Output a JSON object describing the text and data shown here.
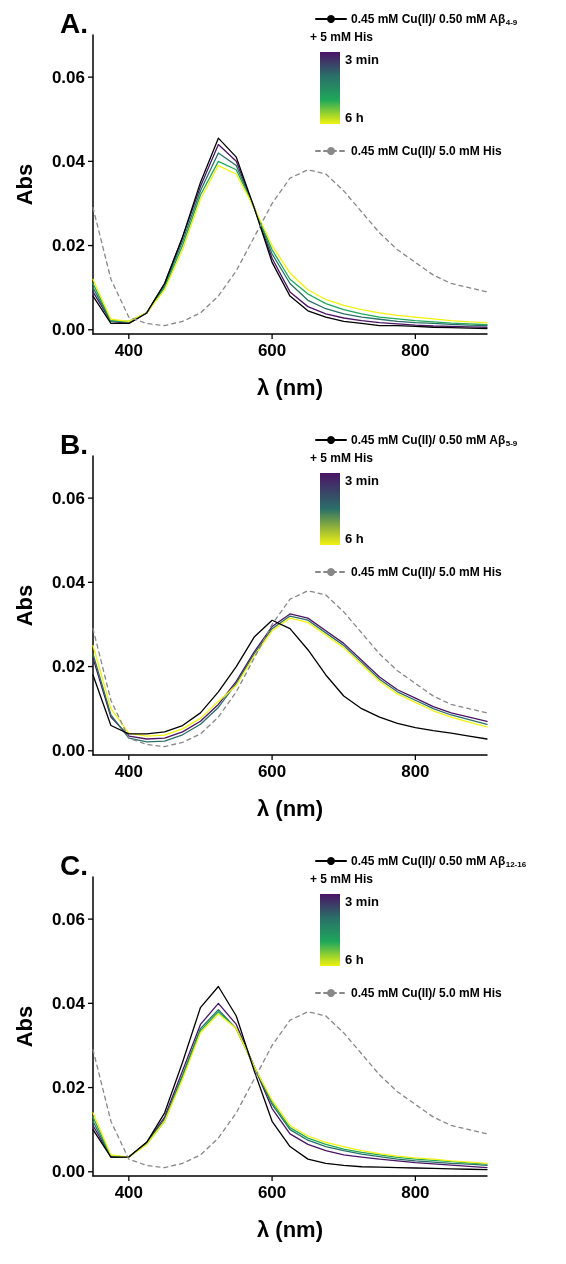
{
  "chart_data": [
    {
      "type": "line",
      "title": "A.",
      "xlabel": "λ (nm)",
      "ylabel": "Abs",
      "xlim": [
        350,
        900
      ],
      "xticks": [
        400,
        600,
        800
      ],
      "ylim": [
        -0.001,
        0.07
      ],
      "yticks": [
        {
          "value": 0,
          "label": "0.00"
        },
        {
          "value": 0.02,
          "label": "0.02"
        },
        {
          "value": 0.04,
          "label": "0.04"
        },
        {
          "value": 0.06,
          "label": "0.06"
        }
      ],
      "grid": false,
      "legend": "top right",
      "annotations": [
        "+ 5 mM His",
        "3 min",
        "6 h"
      ],
      "x": [
        350,
        375,
        400,
        425,
        450,
        475,
        500,
        525,
        550,
        575,
        600,
        625,
        650,
        675,
        700,
        725,
        750,
        775,
        800,
        825,
        850,
        875,
        900
      ],
      "series": [
        {
          "color": "#4b1466",
          "values": [
            0.009,
            0.002,
            0.0015,
            0.004,
            0.011,
            0.022,
            0.034,
            0.044,
            0.04,
            0.029,
            0.017,
            0.009,
            0.0055,
            0.0038,
            0.0028,
            0.0022,
            0.0017,
            0.0014,
            0.0011,
            0.0009,
            0.0008,
            0.0007,
            0.0006
          ]
        },
        {
          "color": "#2a6f68",
          "values": [
            0.01,
            0.002,
            0.0018,
            0.004,
            0.0105,
            0.021,
            0.033,
            0.042,
            0.039,
            0.029,
            0.018,
            0.011,
            0.007,
            0.005,
            0.0038,
            0.003,
            0.0025,
            0.002,
            0.0017,
            0.0015,
            0.0013,
            0.0011,
            0.001
          ]
        },
        {
          "color": "#1fa85a",
          "values": [
            0.011,
            0.0022,
            0.002,
            0.004,
            0.01,
            0.02,
            0.032,
            0.04,
            0.038,
            0.029,
            0.019,
            0.012,
            0.0085,
            0.0062,
            0.0048,
            0.0038,
            0.003,
            0.0026,
            0.0022,
            0.0019,
            0.0016,
            0.0014,
            0.0012
          ]
        },
        {
          "color": "#f2f20f",
          "values": [
            0.012,
            0.0025,
            0.002,
            0.004,
            0.0095,
            0.019,
            0.031,
            0.039,
            0.037,
            0.029,
            0.02,
            0.0135,
            0.0095,
            0.0072,
            0.0058,
            0.0048,
            0.004,
            0.0034,
            0.003,
            0.0026,
            0.0022,
            0.0019,
            0.0017
          ]
        },
        {
          "name": "0.45 mM Cu(II)/ 0.50 mM Aβ$_{4-9}$",
          "color": "#000000",
          "line_style": "solid",
          "values": [
            0.008,
            0.0015,
            0.0015,
            0.004,
            0.011,
            0.022,
            0.035,
            0.0455,
            0.041,
            0.029,
            0.016,
            0.008,
            0.0045,
            0.003,
            0.002,
            0.0015,
            0.001,
            0.001,
            0.0008,
            0.0006,
            0.0005,
            0.0004,
            0.0003
          ]
        },
        {
          "name": "0.45 mM Cu(II)/ 5.0 mM His",
          "color": "#888888",
          "line_style": "dashed",
          "values": [
            0.029,
            0.012,
            0.003,
            0.0015,
            0.001,
            0.002,
            0.004,
            0.008,
            0.014,
            0.022,
            0.03,
            0.036,
            0.038,
            0.037,
            0.033,
            0.028,
            0.023,
            0.019,
            0.016,
            0.013,
            0.011,
            0.01,
            0.009
          ]
        }
      ]
    },
    {
      "type": "line",
      "title": "B.",
      "xlabel": "λ (nm)",
      "ylabel": "Abs",
      "xlim": [
        350,
        900
      ],
      "xticks": [
        400,
        600,
        800
      ],
      "ylim": [
        -0.001,
        0.07
      ],
      "yticks": [
        {
          "value": 0,
          "label": "0.00"
        },
        {
          "value": 0.02,
          "label": "0.02"
        },
        {
          "value": 0.04,
          "label": "0.04"
        },
        {
          "value": 0.06,
          "label": "0.06"
        }
      ],
      "grid": false,
      "legend": "top right",
      "annotations": [
        "+ 5 mM His",
        "3 min",
        "6 h"
      ],
      "x": [
        350,
        375,
        400,
        425,
        450,
        475,
        500,
        525,
        550,
        575,
        600,
        625,
        650,
        675,
        700,
        725,
        750,
        775,
        800,
        825,
        850,
        875,
        900
      ],
      "series": [
        {
          "color": "#4b1466",
          "values": [
            0.022,
            0.008,
            0.0035,
            0.0028,
            0.003,
            0.0045,
            0.007,
            0.011,
            0.0165,
            0.0235,
            0.0295,
            0.0325,
            0.0315,
            0.0285,
            0.0255,
            0.0215,
            0.0175,
            0.0145,
            0.0125,
            0.0105,
            0.009,
            0.008,
            0.007
          ]
        },
        {
          "color": "#2a6f68",
          "values": [
            0.023,
            0.0085,
            0.003,
            0.0021,
            0.0023,
            0.0038,
            0.0063,
            0.0103,
            0.016,
            0.023,
            0.029,
            0.032,
            0.031,
            0.028,
            0.025,
            0.021,
            0.017,
            0.014,
            0.012,
            0.01,
            0.0085,
            0.0074,
            0.0063
          ]
        },
        {
          "color": "#f2f20f",
          "values": [
            0.025,
            0.01,
            0.0042,
            0.0035,
            0.0037,
            0.0052,
            0.0077,
            0.0117,
            0.0155,
            0.0225,
            0.0285,
            0.0315,
            0.0305,
            0.0275,
            0.0245,
            0.0205,
            0.0165,
            0.0135,
            0.0115,
            0.0095,
            0.008,
            0.0068,
            0.0057
          ]
        },
        {
          "name": "0.45 mM Cu(II)/ 0.50 mM Aβ$_{5-9}$",
          "color": "#000000",
          "line_style": "solid",
          "values": [
            0.018,
            0.006,
            0.004,
            0.004,
            0.0045,
            0.006,
            0.009,
            0.014,
            0.02,
            0.027,
            0.031,
            0.029,
            0.024,
            0.018,
            0.013,
            0.01,
            0.008,
            0.0065,
            0.0055,
            0.0048,
            0.0042,
            0.0035,
            0.0028
          ]
        },
        {
          "name": "0.45 mM Cu(II)/ 5.0 mM His",
          "color": "#888888",
          "line_style": "dashed",
          "values": [
            0.029,
            0.012,
            0.003,
            0.0015,
            0.001,
            0.002,
            0.004,
            0.008,
            0.014,
            0.022,
            0.03,
            0.036,
            0.038,
            0.037,
            0.033,
            0.028,
            0.023,
            0.019,
            0.016,
            0.013,
            0.011,
            0.01,
            0.009
          ]
        }
      ]
    },
    {
      "type": "line",
      "title": "C.",
      "xlabel": "λ (nm)",
      "ylabel": "Abs",
      "xlim": [
        350,
        900
      ],
      "xticks": [
        400,
        600,
        800
      ],
      "ylim": [
        -0.001,
        0.07
      ],
      "yticks": [
        {
          "value": 0,
          "label": "0.00"
        },
        {
          "value": 0.02,
          "label": "0.02"
        },
        {
          "value": 0.04,
          "label": "0.04"
        },
        {
          "value": 0.06,
          "label": "0.06"
        }
      ],
      "grid": false,
      "legend": "top right",
      "annotations": [
        "+ 5 mM His",
        "3 min",
        "6 h"
      ],
      "x": [
        350,
        375,
        400,
        425,
        450,
        475,
        500,
        525,
        550,
        575,
        600,
        625,
        650,
        675,
        700,
        725,
        750,
        775,
        800,
        825,
        850,
        875,
        900
      ],
      "series": [
        {
          "color": "#4b1466",
          "values": [
            0.011,
            0.0035,
            0.0035,
            0.007,
            0.013,
            0.024,
            0.035,
            0.04,
            0.035,
            0.025,
            0.015,
            0.009,
            0.0065,
            0.005,
            0.004,
            0.0035,
            0.003,
            0.0026,
            0.0022,
            0.0019,
            0.0016,
            0.0013,
            0.001
          ]
        },
        {
          "color": "#2a6f68",
          "values": [
            0.012,
            0.0035,
            0.0035,
            0.0068,
            0.0125,
            0.023,
            0.034,
            0.0385,
            0.034,
            0.025,
            0.016,
            0.01,
            0.0075,
            0.006,
            0.005,
            0.0042,
            0.0036,
            0.003,
            0.0026,
            0.0023,
            0.002,
            0.0018,
            0.0015
          ]
        },
        {
          "color": "#1fa85a",
          "values": [
            0.013,
            0.0038,
            0.0035,
            0.0066,
            0.012,
            0.0225,
            0.0335,
            0.038,
            0.034,
            0.025,
            0.0165,
            0.0105,
            0.008,
            0.0065,
            0.0054,
            0.0046,
            0.004,
            0.0034,
            0.003,
            0.0027,
            0.0024,
            0.0021,
            0.0018
          ]
        },
        {
          "color": "#f2f20f",
          "values": [
            0.014,
            0.004,
            0.0035,
            0.0065,
            0.012,
            0.022,
            0.033,
            0.0375,
            0.034,
            0.025,
            0.017,
            0.011,
            0.0085,
            0.007,
            0.006,
            0.005,
            0.0043,
            0.0037,
            0.0033,
            0.003,
            0.0026,
            0.0023,
            0.002
          ]
        },
        {
          "name": "0.45 mM Cu(II)/ 0.50 mM Aβ$_{12-16}$",
          "color": "#000000",
          "line_style": "solid",
          "values": [
            0.01,
            0.0035,
            0.0035,
            0.007,
            0.014,
            0.026,
            0.039,
            0.044,
            0.037,
            0.024,
            0.012,
            0.006,
            0.003,
            0.002,
            0.0015,
            0.0012,
            0.0011,
            0.001,
            0.0009,
            0.0008,
            0.0007,
            0.0006,
            0.0005
          ]
        },
        {
          "name": "0.45 mM Cu(II)/ 5.0 mM His",
          "color": "#888888",
          "line_style": "dashed",
          "values": [
            0.029,
            0.012,
            0.003,
            0.0015,
            0.001,
            0.002,
            0.004,
            0.008,
            0.014,
            0.022,
            0.03,
            0.036,
            0.038,
            0.037,
            0.033,
            0.028,
            0.023,
            0.019,
            0.016,
            0.013,
            0.011,
            0.01,
            0.009
          ]
        }
      ]
    }
  ]
}
